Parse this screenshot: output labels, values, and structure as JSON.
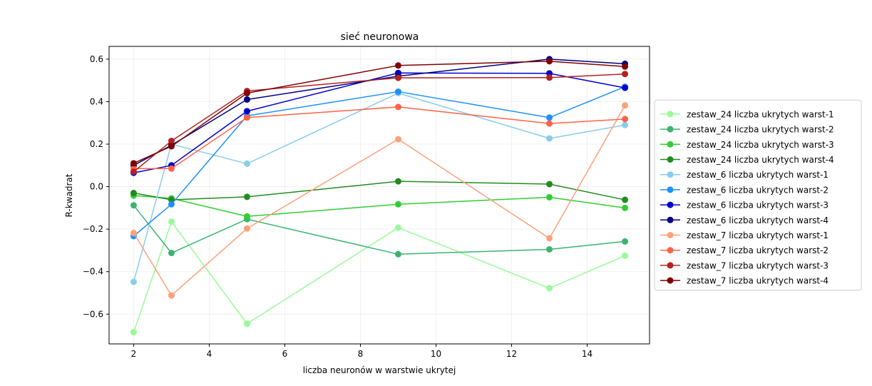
{
  "chart_data": {
    "type": "line",
    "title": "sieć neuronowa",
    "xlabel": "liczba neuronów w warstwie ukrytej",
    "ylabel": "R-kwadrat",
    "x": [
      2,
      3,
      5,
      9,
      13,
      15
    ],
    "xlim": [
      1.35,
      15.65
    ],
    "ylim": [
      -0.74,
      0.66
    ],
    "x_ticks": [
      2,
      4,
      6,
      8,
      10,
      12,
      14
    ],
    "x_tick_labels": [
      "2",
      "4",
      "6",
      "8",
      "10",
      "12",
      "14"
    ],
    "y_ticks": [
      -0.6,
      -0.4,
      -0.2,
      0.0,
      0.2,
      0.4,
      0.6
    ],
    "y_tick_labels": [
      "−0.6",
      "−0.4",
      "−0.2",
      "0.0",
      "0.2",
      "0.4",
      "0.6"
    ],
    "grid": true,
    "legend_position": "right",
    "series": [
      {
        "name": "zestaw_24 liczba ukrytych warst-1",
        "color": "#98fb98",
        "values": [
          -0.685,
          -0.165,
          -0.645,
          -0.193,
          -0.478,
          -0.325
        ]
      },
      {
        "name": "zestaw_24 liczba ukrytych warst-2",
        "color": "#3cb371",
        "values": [
          -0.088,
          -0.312,
          -0.153,
          -0.318,
          -0.295,
          -0.258
        ]
      },
      {
        "name": "zestaw_24 liczba ukrytych warst-3",
        "color": "#32cd32",
        "values": [
          -0.042,
          -0.055,
          -0.14,
          -0.083,
          -0.05,
          -0.1
        ]
      },
      {
        "name": "zestaw_24 liczba ukrytych warst-4",
        "color": "#228b22",
        "values": [
          -0.03,
          -0.062,
          -0.048,
          0.025,
          0.012,
          -0.062
        ]
      },
      {
        "name": "zestaw_6 liczba ukrytych warst-1",
        "color": "#87ceeb",
        "values": [
          -0.448,
          0.2,
          0.108,
          0.44,
          0.227,
          0.29
        ]
      },
      {
        "name": "zestaw_6 liczba ukrytych warst-2",
        "color": "#1e90ff",
        "values": [
          -0.233,
          -0.083,
          0.333,
          0.447,
          0.325,
          0.47
        ]
      },
      {
        "name": "zestaw_6 liczba ukrytych warst-3",
        "color": "#0000cd",
        "values": [
          0.065,
          0.1,
          0.355,
          0.535,
          0.533,
          0.465
        ]
      },
      {
        "name": "zestaw_6 liczba ukrytych warst-4",
        "color": "#000080",
        "values": [
          0.1,
          0.195,
          0.41,
          0.52,
          0.6,
          0.578
        ]
      },
      {
        "name": "zestaw_7 liczba ukrytych warst-1",
        "color": "#ffa07a",
        "values": [
          -0.218,
          -0.512,
          -0.197,
          0.223,
          -0.243,
          0.382
        ]
      },
      {
        "name": "zestaw_7 liczba ukrytych warst-2",
        "color": "#ff6347",
        "values": [
          0.085,
          0.085,
          0.325,
          0.375,
          0.297,
          0.318
        ]
      },
      {
        "name": "zestaw_7 liczba ukrytych warst-3",
        "color": "#b22222",
        "values": [
          0.07,
          0.215,
          0.45,
          0.512,
          0.513,
          0.53
        ]
      },
      {
        "name": "zestaw_7 liczba ukrytych warst-4",
        "color": "#800000",
        "values": [
          0.11,
          0.19,
          0.44,
          0.57,
          0.59,
          0.565
        ]
      }
    ]
  }
}
